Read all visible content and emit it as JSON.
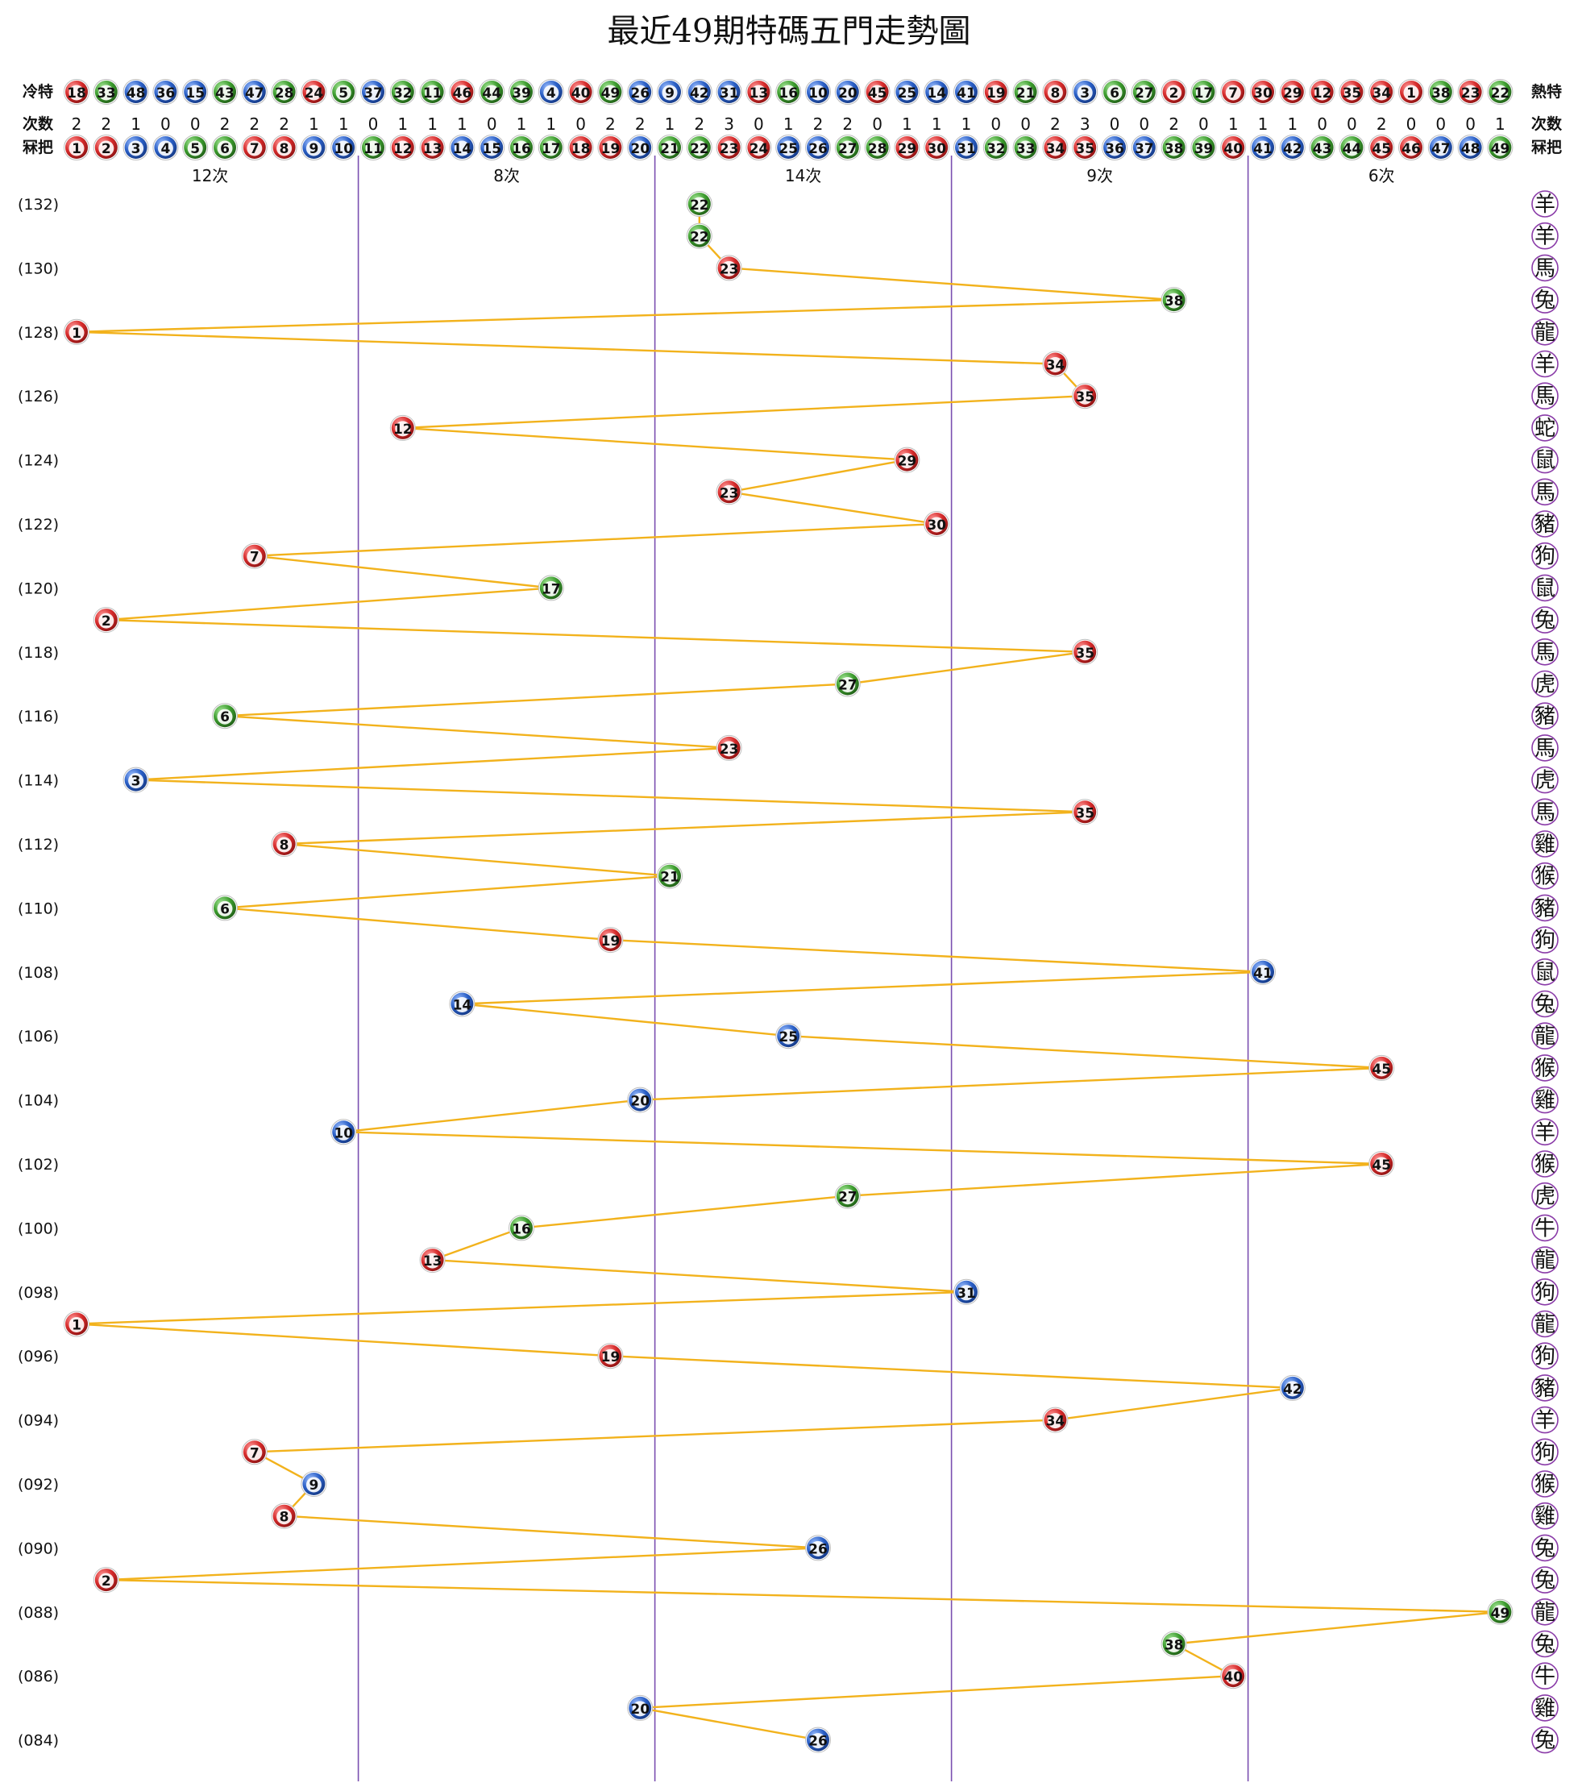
{
  "title": "最近49期特碼五門走勢圖",
  "labels": {
    "cold": "冷特",
    "hot": "熱特",
    "count": "次数",
    "count_right": "次数",
    "mark": "冧把",
    "mark_right": "冧把"
  },
  "colors": {
    "red": "#d62b2b",
    "blue": "#2a5fc6",
    "green": "#3c9c2e",
    "line": "#f2b21c",
    "divider": "#7a4fb0",
    "zodiac_ring": "#8a3ba8"
  },
  "ball_colors": {
    "1": "red",
    "2": "red",
    "3": "blue",
    "4": "blue",
    "5": "green",
    "6": "green",
    "7": "red",
    "8": "red",
    "9": "blue",
    "10": "blue",
    "11": "green",
    "12": "red",
    "13": "red",
    "14": "blue",
    "15": "blue",
    "16": "green",
    "17": "green",
    "18": "red",
    "19": "red",
    "20": "blue",
    "21": "green",
    "22": "green",
    "23": "red",
    "24": "red",
    "25": "blue",
    "26": "blue",
    "27": "green",
    "28": "green",
    "29": "red",
    "30": "red",
    "31": "blue",
    "32": "green",
    "33": "green",
    "34": "red",
    "35": "red",
    "36": "blue",
    "37": "blue",
    "38": "green",
    "39": "green",
    "40": "red",
    "41": "blue",
    "42": "blue",
    "43": "green",
    "44": "green",
    "45": "red",
    "46": "red",
    "47": "blue",
    "48": "blue",
    "49": "green"
  },
  "cold_hot_row": [
    "18",
    "33",
    "48",
    "36",
    "15",
    "43",
    "47",
    "28",
    "24",
    "5",
    "37",
    "32",
    "11",
    "46",
    "44",
    "39",
    "4",
    "40",
    "49",
    "26",
    "9",
    "42",
    "31",
    "13",
    "16",
    "10",
    "20",
    "45",
    "25",
    "14",
    "41",
    "19",
    "21",
    "8",
    "3",
    "6",
    "27",
    "2",
    "17",
    "7",
    "30",
    "29",
    "12",
    "35",
    "34",
    "1",
    "38",
    "23",
    "22"
  ],
  "counts": [
    "2",
    "2",
    "1",
    "0",
    "0",
    "2",
    "2",
    "2",
    "1",
    "1",
    "0",
    "1",
    "1",
    "1",
    "0",
    "1",
    "1",
    "0",
    "2",
    "2",
    "1",
    "2",
    "3",
    "0",
    "1",
    "2",
    "2",
    "0",
    "1",
    "1",
    "1",
    "0",
    "0",
    "2",
    "3",
    "0",
    "0",
    "2",
    "0",
    "1",
    "1",
    "1",
    "0",
    "0",
    "2",
    "0",
    "0",
    "0",
    "1"
  ],
  "numbers": [
    "1",
    "2",
    "3",
    "4",
    "5",
    "6",
    "7",
    "8",
    "9",
    "10",
    "11",
    "12",
    "13",
    "14",
    "15",
    "16",
    "17",
    "18",
    "19",
    "20",
    "21",
    "22",
    "23",
    "24",
    "25",
    "26",
    "27",
    "28",
    "29",
    "30",
    "31",
    "32",
    "33",
    "34",
    "35",
    "36",
    "37",
    "38",
    "39",
    "40",
    "41",
    "42",
    "43",
    "44",
    "45",
    "46",
    "47",
    "48",
    "49"
  ],
  "group_totals": [
    "12次",
    "8次",
    "14次",
    "9次",
    "6次"
  ],
  "chart_data": {
    "type": "line",
    "title": "最近49期特碼五門走勢圖",
    "x_domain": [
      1,
      49
    ],
    "groups": [
      {
        "range": [
          1,
          10
        ],
        "label": "12次"
      },
      {
        "range": [
          11,
          20
        ],
        "label": "8次"
      },
      {
        "range": [
          21,
          30
        ],
        "label": "14次"
      },
      {
        "range": [
          31,
          40
        ],
        "label": "9次"
      },
      {
        "range": [
          41,
          49
        ],
        "label": "6次"
      }
    ],
    "draws": [
      {
        "period": "132",
        "number": "22",
        "zodiac": "羊"
      },
      {
        "period": "131",
        "number": "22",
        "zodiac": "羊"
      },
      {
        "period": "130",
        "number": "23",
        "zodiac": "馬"
      },
      {
        "period": "129",
        "number": "38",
        "zodiac": "兔"
      },
      {
        "period": "128",
        "number": "1",
        "zodiac": "龍"
      },
      {
        "period": "127",
        "number": "34",
        "zodiac": "羊"
      },
      {
        "period": "126",
        "number": "35",
        "zodiac": "馬"
      },
      {
        "period": "125",
        "number": "12",
        "zodiac": "蛇"
      },
      {
        "period": "124",
        "number": "29",
        "zodiac": "鼠"
      },
      {
        "period": "123",
        "number": "23",
        "zodiac": "馬"
      },
      {
        "period": "122",
        "number": "30",
        "zodiac": "豬"
      },
      {
        "period": "121",
        "number": "7",
        "zodiac": "狗"
      },
      {
        "period": "120",
        "number": "17",
        "zodiac": "鼠"
      },
      {
        "period": "119",
        "number": "2",
        "zodiac": "兔"
      },
      {
        "period": "118",
        "number": "35",
        "zodiac": "馬"
      },
      {
        "period": "117",
        "number": "27",
        "zodiac": "虎"
      },
      {
        "period": "116",
        "number": "6",
        "zodiac": "豬"
      },
      {
        "period": "115",
        "number": "23",
        "zodiac": "馬"
      },
      {
        "period": "114",
        "number": "3",
        "zodiac": "虎"
      },
      {
        "period": "113",
        "number": "35",
        "zodiac": "馬"
      },
      {
        "period": "112",
        "number": "8",
        "zodiac": "雞"
      },
      {
        "period": "111",
        "number": "21",
        "zodiac": "猴"
      },
      {
        "period": "110",
        "number": "6",
        "zodiac": "豬"
      },
      {
        "period": "109",
        "number": "19",
        "zodiac": "狗"
      },
      {
        "period": "108",
        "number": "41",
        "zodiac": "鼠"
      },
      {
        "period": "107",
        "number": "14",
        "zodiac": "兔"
      },
      {
        "period": "106",
        "number": "25",
        "zodiac": "龍"
      },
      {
        "period": "105",
        "number": "45",
        "zodiac": "猴"
      },
      {
        "period": "104",
        "number": "20",
        "zodiac": "雞"
      },
      {
        "period": "103",
        "number": "10",
        "zodiac": "羊"
      },
      {
        "period": "102",
        "number": "45",
        "zodiac": "猴"
      },
      {
        "period": "101",
        "number": "27",
        "zodiac": "虎"
      },
      {
        "period": "100",
        "number": "16",
        "zodiac": "牛"
      },
      {
        "period": "099",
        "number": "13",
        "zodiac": "龍"
      },
      {
        "period": "098",
        "number": "31",
        "zodiac": "狗"
      },
      {
        "period": "097",
        "number": "1",
        "zodiac": "龍"
      },
      {
        "period": "096",
        "number": "19",
        "zodiac": "狗"
      },
      {
        "period": "095",
        "number": "42",
        "zodiac": "豬"
      },
      {
        "period": "094",
        "number": "34",
        "zodiac": "羊"
      },
      {
        "period": "093",
        "number": "7",
        "zodiac": "狗"
      },
      {
        "period": "092",
        "number": "9",
        "zodiac": "猴"
      },
      {
        "period": "091",
        "number": "8",
        "zodiac": "雞"
      },
      {
        "period": "090",
        "number": "26",
        "zodiac": "兔"
      },
      {
        "period": "089",
        "number": "2",
        "zodiac": "兔"
      },
      {
        "period": "088",
        "number": "49",
        "zodiac": "龍"
      },
      {
        "period": "087",
        "number": "38",
        "zodiac": "兔"
      },
      {
        "period": "086",
        "number": "40",
        "zodiac": "牛"
      },
      {
        "period": "085",
        "number": "20",
        "zodiac": "雞"
      },
      {
        "period": "084",
        "number": "26",
        "zodiac": "兔"
      }
    ],
    "period_labels": [
      "(132)",
      "(130)",
      "(128)",
      "(126)",
      "(124)",
      "(122)",
      "(120)",
      "(118)",
      "(116)",
      "(114)",
      "(112)",
      "(110)",
      "(108)",
      "(106)",
      "(104)",
      "(102)",
      "(100)",
      "(098)",
      "(096)",
      "(094)",
      "(092)",
      "(090)",
      "(088)",
      "(086)",
      "(084)"
    ]
  }
}
